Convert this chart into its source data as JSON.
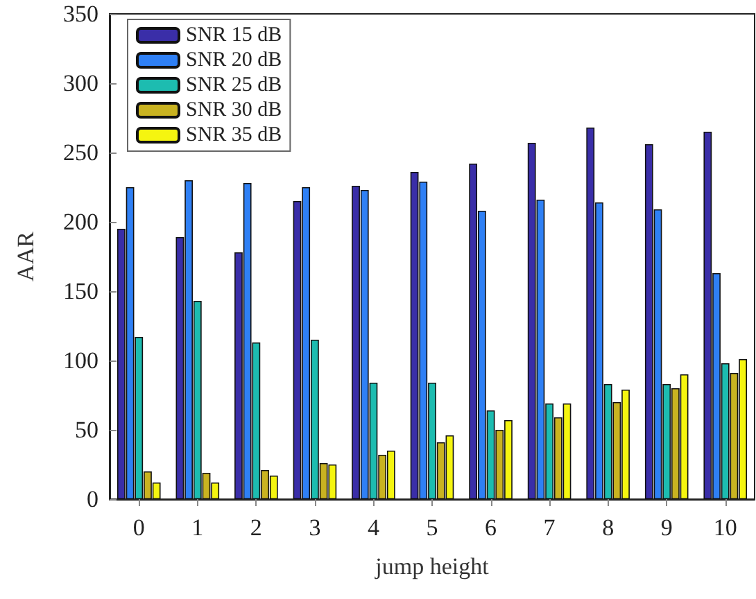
{
  "chart_data": {
    "type": "bar",
    "xlabel": "jump height",
    "ylabel": "AAR",
    "categories": [
      "0",
      "1",
      "2",
      "3",
      "4",
      "5",
      "6",
      "7",
      "8",
      "9",
      "10"
    ],
    "series": [
      {
        "name": "SNR 15 dB",
        "color": "#3a2ea8",
        "values": [
          195,
          189,
          178,
          215,
          226,
          236,
          242,
          257,
          268,
          256,
          265
        ]
      },
      {
        "name": "SNR 20 dB",
        "color": "#2f80f5",
        "values": [
          225,
          230,
          228,
          225,
          223,
          229,
          208,
          216,
          214,
          209,
          163
        ]
      },
      {
        "name": "SNR 25 dB",
        "color": "#1dbcb0",
        "values": [
          117,
          143,
          113,
          115,
          84,
          84,
          64,
          69,
          83,
          83,
          98
        ]
      },
      {
        "name": "SNR 30 dB",
        "color": "#c9b321",
        "values": [
          20,
          19,
          21,
          26,
          32,
          41,
          50,
          59,
          70,
          80,
          91
        ]
      },
      {
        "name": "SNR 35 dB",
        "color": "#f5f510",
        "values": [
          12,
          12,
          17,
          25,
          35,
          46,
          57,
          69,
          79,
          90,
          101
        ]
      }
    ],
    "ylim": [
      0,
      350
    ],
    "yticks": [
      0,
      50,
      100,
      150,
      200,
      250,
      300,
      350
    ],
    "grid": false,
    "legend": "top left"
  }
}
